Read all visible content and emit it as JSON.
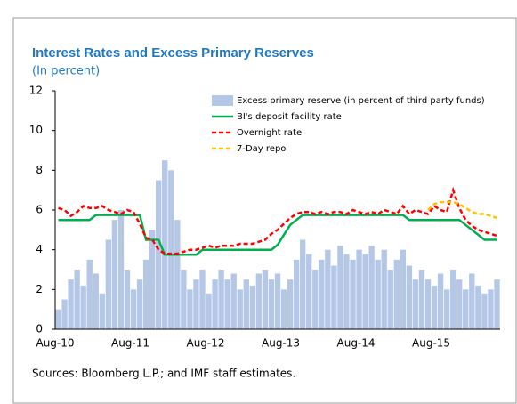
{
  "chart_data": {
    "type": "bar-line",
    "title": "Interest Rates and Excess Primary Reserves",
    "subtitle": "(In percent)",
    "source": "Sources: Bloomberg L.P.; and IMF staff estimates.",
    "categories": [
      "Aug-10",
      null,
      null,
      null,
      null,
      null,
      null,
      null,
      null,
      null,
      null,
      null,
      "Aug-11",
      null,
      null,
      null,
      null,
      null,
      null,
      null,
      null,
      null,
      null,
      null,
      "Aug-12",
      null,
      null,
      null,
      null,
      null,
      null,
      null,
      null,
      null,
      null,
      null,
      "Aug-13",
      null,
      null,
      null,
      null,
      null,
      null,
      null,
      null,
      null,
      null,
      null,
      "Aug-14",
      null,
      null,
      null,
      null,
      null,
      null,
      null,
      null,
      null,
      null,
      null,
      "Aug-15",
      null,
      null,
      null,
      null,
      null,
      null,
      null,
      null,
      null,
      null
    ],
    "series": [
      {
        "name": "Excess primary reserve (in percent of third party funds)",
        "kind": "bar",
        "color": "#b4c7e7",
        "values": [
          1.0,
          1.5,
          2.5,
          3.0,
          2.2,
          3.5,
          2.8,
          1.8,
          4.5,
          5.5,
          6.0,
          3.0,
          2.0,
          2.5,
          3.5,
          5.0,
          7.5,
          8.5,
          8.0,
          5.5,
          3.0,
          2.0,
          2.5,
          3.0,
          1.8,
          2.5,
          3.0,
          2.5,
          2.8,
          2.0,
          2.5,
          2.2,
          2.8,
          3.0,
          2.5,
          2.8,
          2.0,
          2.5,
          3.5,
          4.5,
          3.8,
          3.0,
          3.5,
          4.0,
          3.2,
          4.2,
          3.8,
          3.5,
          4.0,
          3.8,
          4.2,
          3.5,
          4.0,
          3.0,
          3.5,
          4.0,
          3.2,
          2.5,
          3.0,
          2.5,
          2.2,
          2.8,
          2.0,
          3.0,
          2.5,
          2.0,
          2.8,
          2.2,
          1.8,
          2.0,
          2.5
        ]
      },
      {
        "name": "BI's deposit facility rate",
        "kind": "line",
        "dashed": false,
        "color": "#00b050",
        "values": [
          5.5,
          5.5,
          5.5,
          5.5,
          5.5,
          5.5,
          5.75,
          5.75,
          5.75,
          5.75,
          5.75,
          5.75,
          5.75,
          5.75,
          4.5,
          4.5,
          4.5,
          3.75,
          3.75,
          3.75,
          3.75,
          3.75,
          3.75,
          4.0,
          4.0,
          4.0,
          4.0,
          4.0,
          4.0,
          4.0,
          4.0,
          4.0,
          4.0,
          4.0,
          4.0,
          4.25,
          4.75,
          5.25,
          5.5,
          5.75,
          5.75,
          5.75,
          5.75,
          5.75,
          5.75,
          5.75,
          5.75,
          5.75,
          5.75,
          5.75,
          5.75,
          5.75,
          5.75,
          5.75,
          5.75,
          5.75,
          5.5,
          5.5,
          5.5,
          5.5,
          5.5,
          5.5,
          5.5,
          5.5,
          5.5,
          5.25,
          5.0,
          4.75,
          4.5,
          4.5,
          4.5
        ]
      },
      {
        "name": "Overnight rate",
        "kind": "line",
        "dashed": true,
        "color": "#ff0000",
        "values": [
          6.1,
          6.0,
          5.7,
          5.9,
          6.2,
          6.1,
          6.1,
          6.2,
          6.0,
          5.9,
          5.8,
          6.0,
          5.9,
          5.3,
          4.6,
          4.5,
          4.0,
          3.8,
          3.8,
          3.8,
          3.9,
          4.0,
          4.0,
          4.1,
          4.2,
          4.1,
          4.2,
          4.2,
          4.2,
          4.3,
          4.3,
          4.3,
          4.4,
          4.5,
          4.8,
          5.0,
          5.3,
          5.6,
          5.8,
          5.9,
          5.9,
          5.8,
          5.9,
          5.8,
          5.9,
          5.9,
          5.8,
          6.0,
          5.9,
          5.8,
          5.9,
          5.8,
          6.0,
          5.9,
          5.8,
          6.2,
          5.8,
          6.0,
          5.9,
          5.8,
          6.2,
          6.0,
          5.9,
          7.0,
          6.1,
          5.5,
          5.2,
          5.0,
          4.9,
          4.8,
          4.7
        ]
      },
      {
        "name": "7-Day repo",
        "kind": "line",
        "dashed": true,
        "color": "#ffc000",
        "values": [
          null,
          null,
          null,
          null,
          null,
          null,
          null,
          null,
          null,
          null,
          null,
          null,
          null,
          null,
          null,
          null,
          null,
          null,
          null,
          null,
          null,
          null,
          null,
          null,
          null,
          null,
          null,
          null,
          null,
          null,
          null,
          null,
          null,
          null,
          null,
          null,
          null,
          null,
          null,
          null,
          null,
          null,
          null,
          null,
          null,
          null,
          null,
          null,
          null,
          null,
          null,
          null,
          null,
          null,
          null,
          null,
          null,
          null,
          null,
          6.0,
          6.3,
          6.4,
          6.4,
          6.4,
          6.3,
          6.1,
          5.9,
          5.8,
          5.8,
          5.7,
          5.6
        ]
      }
    ],
    "ylim": [
      0,
      12
    ],
    "yticks": [
      0,
      2,
      4,
      6,
      8,
      10,
      12
    ],
    "grid": false,
    "legend": "top-right"
  }
}
